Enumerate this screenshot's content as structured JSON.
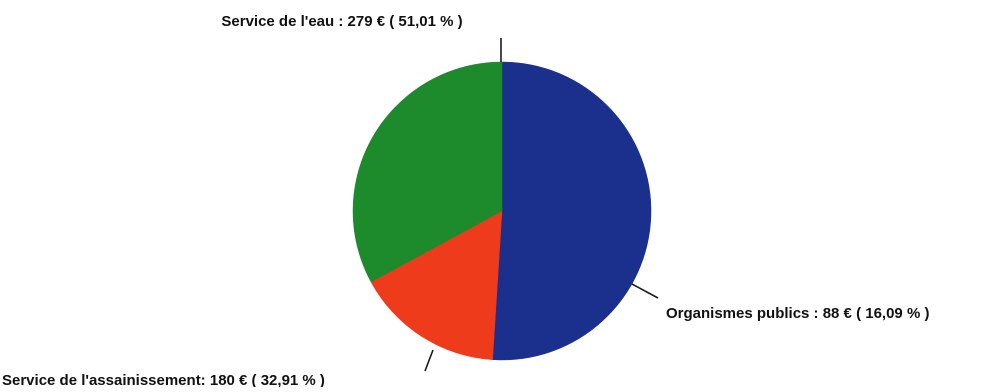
{
  "chart_data": {
    "type": "pie",
    "start_angle_deg": 90,
    "direction": "clockwise",
    "slices": [
      {
        "name": "Service de l'eau",
        "value": 279,
        "percent": 51.01,
        "color": "#1b2f8c",
        "label": "Service de l'eau : 279 € ( 51,01 % )"
      },
      {
        "name": "Organismes publics",
        "value": 88,
        "percent": 16.09,
        "color": "#ee3b1c",
        "label": "Organismes publics : 88 € ( 16,09 % )"
      },
      {
        "name": "Service de l'assainissement",
        "value": 180,
        "percent": 32.91,
        "color": "#1d8a2c",
        "label": "Service de l'assainissement: 180 € ( 32,91 % )"
      }
    ]
  }
}
